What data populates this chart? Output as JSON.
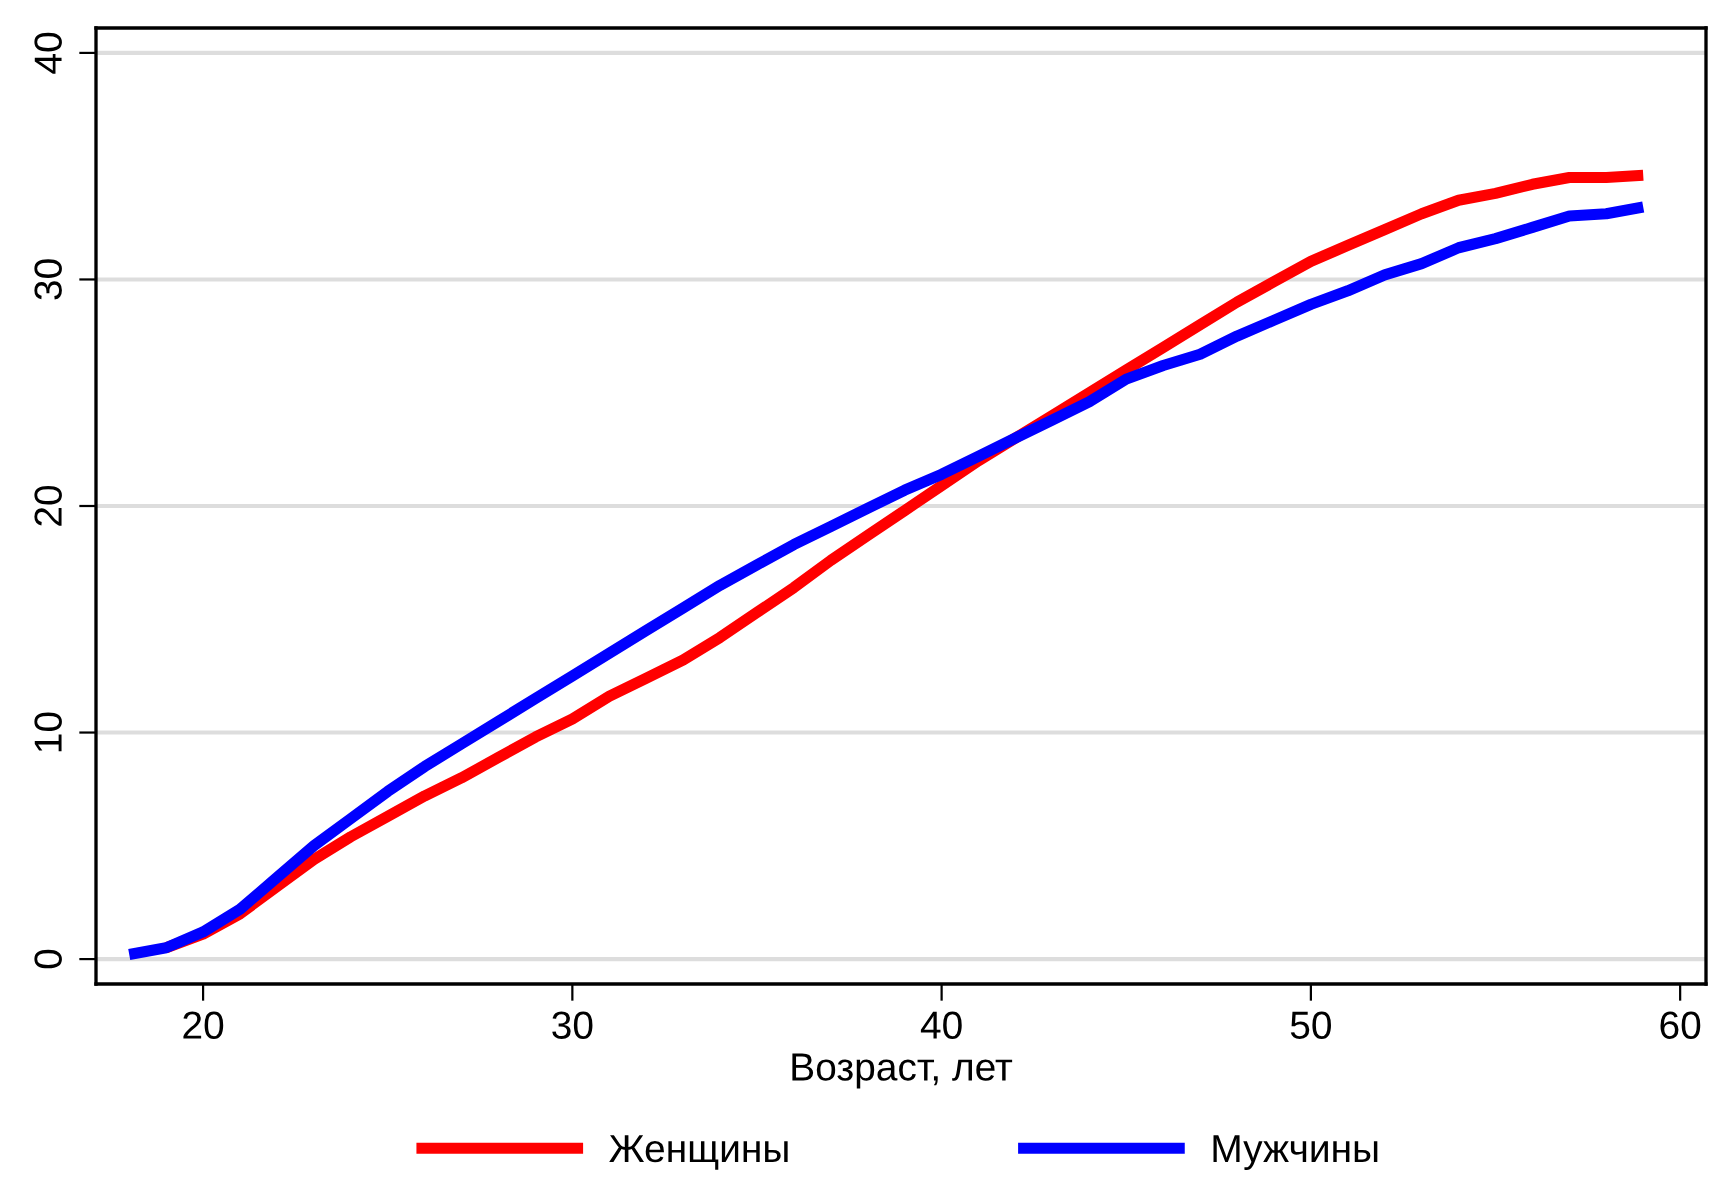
{
  "chart_data": {
    "type": "line",
    "xlabel": "Возраст, лет",
    "x": [
      18,
      19,
      20,
      21,
      22,
      23,
      24,
      25,
      26,
      27,
      28,
      29,
      30,
      31,
      32,
      33,
      34,
      35,
      36,
      37,
      38,
      39,
      40,
      41,
      42,
      43,
      44,
      45,
      46,
      47,
      48,
      49,
      50,
      51,
      52,
      53,
      54,
      55,
      56,
      57,
      58,
      59
    ],
    "series": [
      {
        "name": "Женщины",
        "color": "#ff0000",
        "values": [
          null,
          0.5,
          1.1,
          2.0,
          3.2,
          4.4,
          5.4,
          6.3,
          7.2,
          8.0,
          8.9,
          9.8,
          10.6,
          11.6,
          12.4,
          13.2,
          14.2,
          15.3,
          16.4,
          17.6,
          18.7,
          19.8,
          20.9,
          22.0,
          23.0,
          24.0,
          25.0,
          26.0,
          27.0,
          28.0,
          29.0,
          29.9,
          30.8,
          31.5,
          32.2,
          32.9,
          33.5,
          33.8,
          34.2,
          34.5,
          34.5,
          34.6
        ]
      },
      {
        "name": "Мужчины",
        "color": "#0000ff",
        "values": [
          0.2,
          0.5,
          1.2,
          2.2,
          3.6,
          5.0,
          6.2,
          7.4,
          8.5,
          9.5,
          10.5,
          11.5,
          12.5,
          13.5,
          14.5,
          15.5,
          16.5,
          17.4,
          18.3,
          19.1,
          19.9,
          20.7,
          21.4,
          22.2,
          23.0,
          23.8,
          24.6,
          25.6,
          26.2,
          26.7,
          27.5,
          28.2,
          28.9,
          29.5,
          30.2,
          30.7,
          31.4,
          31.8,
          32.3,
          32.8,
          32.9,
          33.2
        ]
      }
    ],
    "xlim": [
      17.1,
      60.7
    ],
    "ylim": [
      -1.1,
      41.1
    ],
    "xticks": [
      20,
      30,
      40,
      50,
      60
    ],
    "yticks": [
      0,
      10,
      20,
      30,
      40
    ],
    "grid": "y",
    "legend": "bottom",
    "marker": "none",
    "line_style": "solid"
  }
}
